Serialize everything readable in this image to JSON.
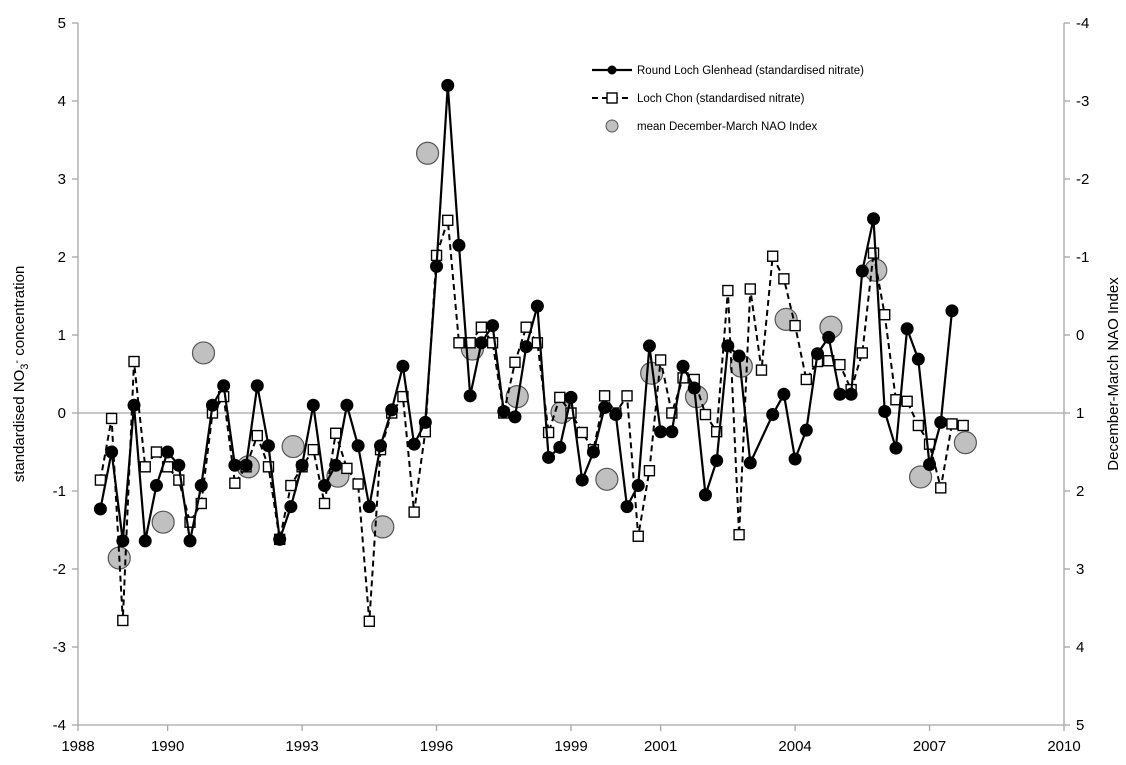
{
  "chart_data": {
    "type": "line",
    "title": "",
    "xlabel": "",
    "ylabel": "standardised NO3- concentration",
    "ylabel_right": "December-March NAO Index",
    "xlim": [
      1988,
      2010
    ],
    "x_ticks": [
      "1988",
      "1990",
      "1993",
      "1996",
      "1999",
      "2001",
      "2004",
      "2007",
      "2010"
    ],
    "ylim": [
      -4,
      5
    ],
    "y_ticks": [
      "-4",
      "-3",
      "-2",
      "-1",
      "0",
      "1",
      "2",
      "3",
      "4",
      "5"
    ],
    "ylim_right": [
      5,
      -4
    ],
    "y_right_ticks": [
      "5",
      "4",
      "3",
      "2",
      "1",
      "0",
      "-1",
      "-2",
      "-3",
      "-4"
    ],
    "right_axis_reversed": true,
    "grid": false,
    "zero_line": true,
    "legend_position": "top-right",
    "series": [
      {
        "name": "Round Loch Glenhead (standardised nitrate)",
        "axis": "left",
        "style": "solid line, filled black circles",
        "color": "#000000",
        "points": [
          [
            1988.5,
            -1.23
          ],
          [
            1988.75,
            -0.5
          ],
          [
            1989.0,
            -1.64
          ],
          [
            1989.25,
            0.1
          ],
          [
            1989.5,
            -1.64
          ],
          [
            1989.75,
            -0.93
          ],
          [
            1990.0,
            -0.5
          ],
          [
            1990.25,
            -0.67
          ],
          [
            1990.5,
            -1.64
          ],
          [
            1990.75,
            -0.93
          ],
          [
            1991.0,
            0.1
          ],
          [
            1991.25,
            0.35
          ],
          [
            1991.5,
            -0.67
          ],
          [
            1991.75,
            -0.67
          ],
          [
            1992.0,
            0.35
          ],
          [
            1992.25,
            -0.42
          ],
          [
            1992.5,
            -1.62
          ],
          [
            1992.75,
            -1.2
          ],
          [
            1993.0,
            -0.67
          ],
          [
            1993.25,
            0.1
          ],
          [
            1993.5,
            -0.93
          ],
          [
            1993.75,
            -0.67
          ],
          [
            1994.0,
            0.1
          ],
          [
            1994.25,
            -0.42
          ],
          [
            1994.5,
            -1.2
          ],
          [
            1994.75,
            -0.42
          ],
          [
            1995.0,
            0.04
          ],
          [
            1995.25,
            0.6
          ],
          [
            1995.5,
            -0.4
          ],
          [
            1995.75,
            -0.12
          ],
          [
            1996.0,
            1.88
          ],
          [
            1996.25,
            4.2
          ],
          [
            1996.5,
            2.15
          ],
          [
            1996.75,
            0.22
          ],
          [
            1997.0,
            0.9
          ],
          [
            1997.25,
            1.12
          ],
          [
            1997.5,
            0.02
          ],
          [
            1997.75,
            -0.05
          ],
          [
            1998.0,
            0.85
          ],
          [
            1998.25,
            1.37
          ],
          [
            1998.5,
            -0.57
          ],
          [
            1998.75,
            -0.44
          ],
          [
            1999.0,
            0.2
          ],
          [
            1999.25,
            -0.86
          ],
          [
            1999.5,
            -0.5
          ],
          [
            1999.75,
            0.07
          ],
          [
            2000.0,
            -0.02
          ],
          [
            2000.25,
            -1.2
          ],
          [
            2000.5,
            -0.93
          ],
          [
            2000.75,
            0.86
          ],
          [
            2001.0,
            -0.24
          ],
          [
            2001.25,
            -0.24
          ],
          [
            2001.5,
            0.6
          ],
          [
            2001.75,
            0.32
          ],
          [
            2002.0,
            -1.05
          ],
          [
            2002.25,
            -0.61
          ],
          [
            2002.5,
            0.86
          ],
          [
            2002.75,
            0.73
          ],
          [
            2003.0,
            -0.64
          ],
          [
            2003.5,
            -0.02
          ],
          [
            2003.75,
            0.24
          ],
          [
            2004.0,
            -0.59
          ],
          [
            2004.25,
            -0.22
          ],
          [
            2004.5,
            0.76
          ],
          [
            2004.75,
            0.97
          ],
          [
            2005.0,
            0.24
          ],
          [
            2005.25,
            0.24
          ],
          [
            2005.5,
            1.82
          ],
          [
            2005.75,
            2.49
          ],
          [
            2006.0,
            0.02
          ],
          [
            2006.25,
            -0.45
          ],
          [
            2006.5,
            1.08
          ],
          [
            2006.75,
            0.69
          ],
          [
            2007.0,
            -0.66
          ],
          [
            2007.25,
            -0.12
          ],
          [
            2007.5,
            1.31
          ]
        ]
      },
      {
        "name": "Loch Chon (standardised nitrate)",
        "axis": "left",
        "style": "dashed line, open squares",
        "color": "#000000",
        "points": [
          [
            1988.5,
            -0.86
          ],
          [
            1988.75,
            -0.07
          ],
          [
            1989.0,
            -2.66
          ],
          [
            1989.25,
            0.66
          ],
          [
            1989.5,
            -0.69
          ],
          [
            1989.75,
            -0.5
          ],
          [
            1990.0,
            -0.69
          ],
          [
            1990.25,
            -0.86
          ],
          [
            1990.5,
            -1.4
          ],
          [
            1990.75,
            -1.16
          ],
          [
            1991.0,
            0.0
          ],
          [
            1991.25,
            0.21
          ],
          [
            1991.5,
            -0.9
          ],
          [
            1991.75,
            -0.69
          ],
          [
            1992.0,
            -0.29
          ],
          [
            1992.25,
            -0.69
          ],
          [
            1992.5,
            -1.62
          ],
          [
            1992.75,
            -0.93
          ],
          [
            1993.0,
            -0.69
          ],
          [
            1993.25,
            -0.47
          ],
          [
            1993.5,
            -1.16
          ],
          [
            1993.75,
            -0.26
          ],
          [
            1994.0,
            -0.71
          ],
          [
            1994.25,
            -0.91
          ],
          [
            1994.5,
            -2.67
          ],
          [
            1994.75,
            -0.47
          ],
          [
            1995.0,
            0.0
          ],
          [
            1995.25,
            0.21
          ],
          [
            1995.5,
            -1.27
          ],
          [
            1995.75,
            -0.24
          ],
          [
            1996.0,
            2.02
          ],
          [
            1996.25,
            2.47
          ],
          [
            1996.5,
            0.9
          ],
          [
            1996.75,
            0.9
          ],
          [
            1997.0,
            1.1
          ],
          [
            1997.25,
            0.9
          ],
          [
            1997.5,
            0.0
          ],
          [
            1997.75,
            0.65
          ],
          [
            1998.0,
            1.1
          ],
          [
            1998.25,
            0.9
          ],
          [
            1998.5,
            -0.25
          ],
          [
            1998.75,
            0.2
          ],
          [
            1999.0,
            0.0
          ],
          [
            1999.25,
            -0.25
          ],
          [
            1999.5,
            -0.47
          ],
          [
            1999.75,
            0.22
          ],
          [
            2000.0,
            0.0
          ],
          [
            2000.25,
            0.22
          ],
          [
            2000.5,
            -1.58
          ],
          [
            2000.75,
            -0.74
          ],
          [
            2001.0,
            0.68
          ],
          [
            2001.25,
            0.0
          ],
          [
            2001.5,
            0.45
          ],
          [
            2001.75,
            0.43
          ],
          [
            2002.0,
            -0.02
          ],
          [
            2002.25,
            -0.24
          ],
          [
            2002.5,
            1.57
          ],
          [
            2002.75,
            -1.56
          ],
          [
            2003.0,
            1.59
          ],
          [
            2003.25,
            0.55
          ],
          [
            2003.5,
            2.01
          ],
          [
            2003.75,
            1.72
          ],
          [
            2004.0,
            1.12
          ],
          [
            2004.25,
            0.43
          ],
          [
            2004.5,
            0.66
          ],
          [
            2004.75,
            0.67
          ],
          [
            2005.0,
            0.62
          ],
          [
            2005.25,
            0.3
          ],
          [
            2005.5,
            0.77
          ],
          [
            2005.75,
            2.05
          ],
          [
            2006.0,
            1.26
          ],
          [
            2006.25,
            0.17
          ],
          [
            2006.5,
            0.15
          ],
          [
            2006.75,
            -0.16
          ],
          [
            2007.0,
            -0.4
          ],
          [
            2007.25,
            -0.96
          ],
          [
            2007.5,
            -0.14
          ],
          [
            2007.75,
            -0.16
          ]
        ]
      },
      {
        "name": "mean December-March NAO Index",
        "axis": "right",
        "style": "large grey circles, no line",
        "color": "#c0c0c0",
        "points": [
          [
            1988.92,
            2.86
          ],
          [
            1989.9,
            2.4
          ],
          [
            1990.8,
            0.23
          ],
          [
            1991.8,
            1.69
          ],
          [
            1992.8,
            1.43
          ],
          [
            1993.8,
            1.81
          ],
          [
            1994.8,
            2.46
          ],
          [
            1995.8,
            -2.33
          ],
          [
            1996.8,
            0.18
          ],
          [
            1997.8,
            0.79
          ],
          [
            1998.8,
            0.99
          ],
          [
            1999.8,
            1.85
          ],
          [
            2000.8,
            0.49
          ],
          [
            2001.8,
            0.79
          ],
          [
            2002.8,
            0.4
          ],
          [
            2003.8,
            -0.2
          ],
          [
            2004.8,
            -0.1
          ],
          [
            2005.8,
            -0.83
          ],
          [
            2006.8,
            1.82
          ],
          [
            2007.8,
            1.38
          ]
        ]
      }
    ]
  }
}
